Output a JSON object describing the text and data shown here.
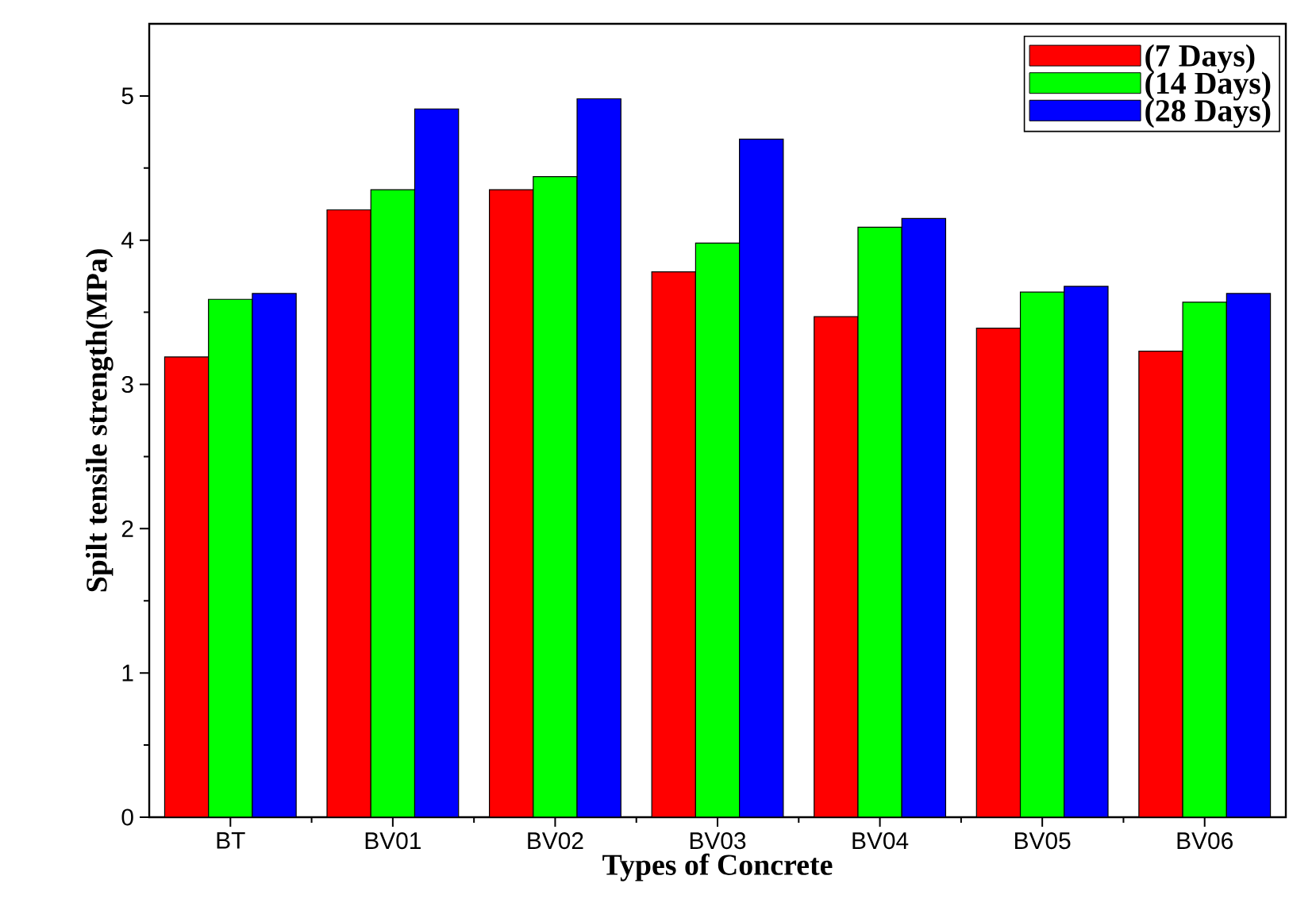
{
  "chart_data": {
    "type": "bar",
    "xlabel": "Types of Concrete",
    "ylabel": "Spilt tensile strength(MPa)",
    "categories": [
      "BT",
      "BV01",
      "BV02",
      "BV03",
      "BV04",
      "BV05",
      "BV06"
    ],
    "series": [
      {
        "name": "(7 Days)",
        "color": "#ff0000",
        "values": [
          3.19,
          4.21,
          4.35,
          3.78,
          3.47,
          3.39,
          3.23
        ]
      },
      {
        "name": "(14 Days)",
        "color": "#00ff00",
        "values": [
          3.59,
          4.35,
          4.44,
          3.98,
          4.09,
          3.64,
          3.57
        ]
      },
      {
        "name": "(28 Days)",
        "color": "#0000ff",
        "values": [
          3.63,
          4.91,
          4.98,
          4.7,
          4.15,
          3.68,
          3.63
        ]
      }
    ],
    "ylim": [
      0,
      5.5
    ],
    "yticks": [
      0,
      1,
      2,
      3,
      4,
      5
    ],
    "legend": "top right",
    "grid": false
  }
}
